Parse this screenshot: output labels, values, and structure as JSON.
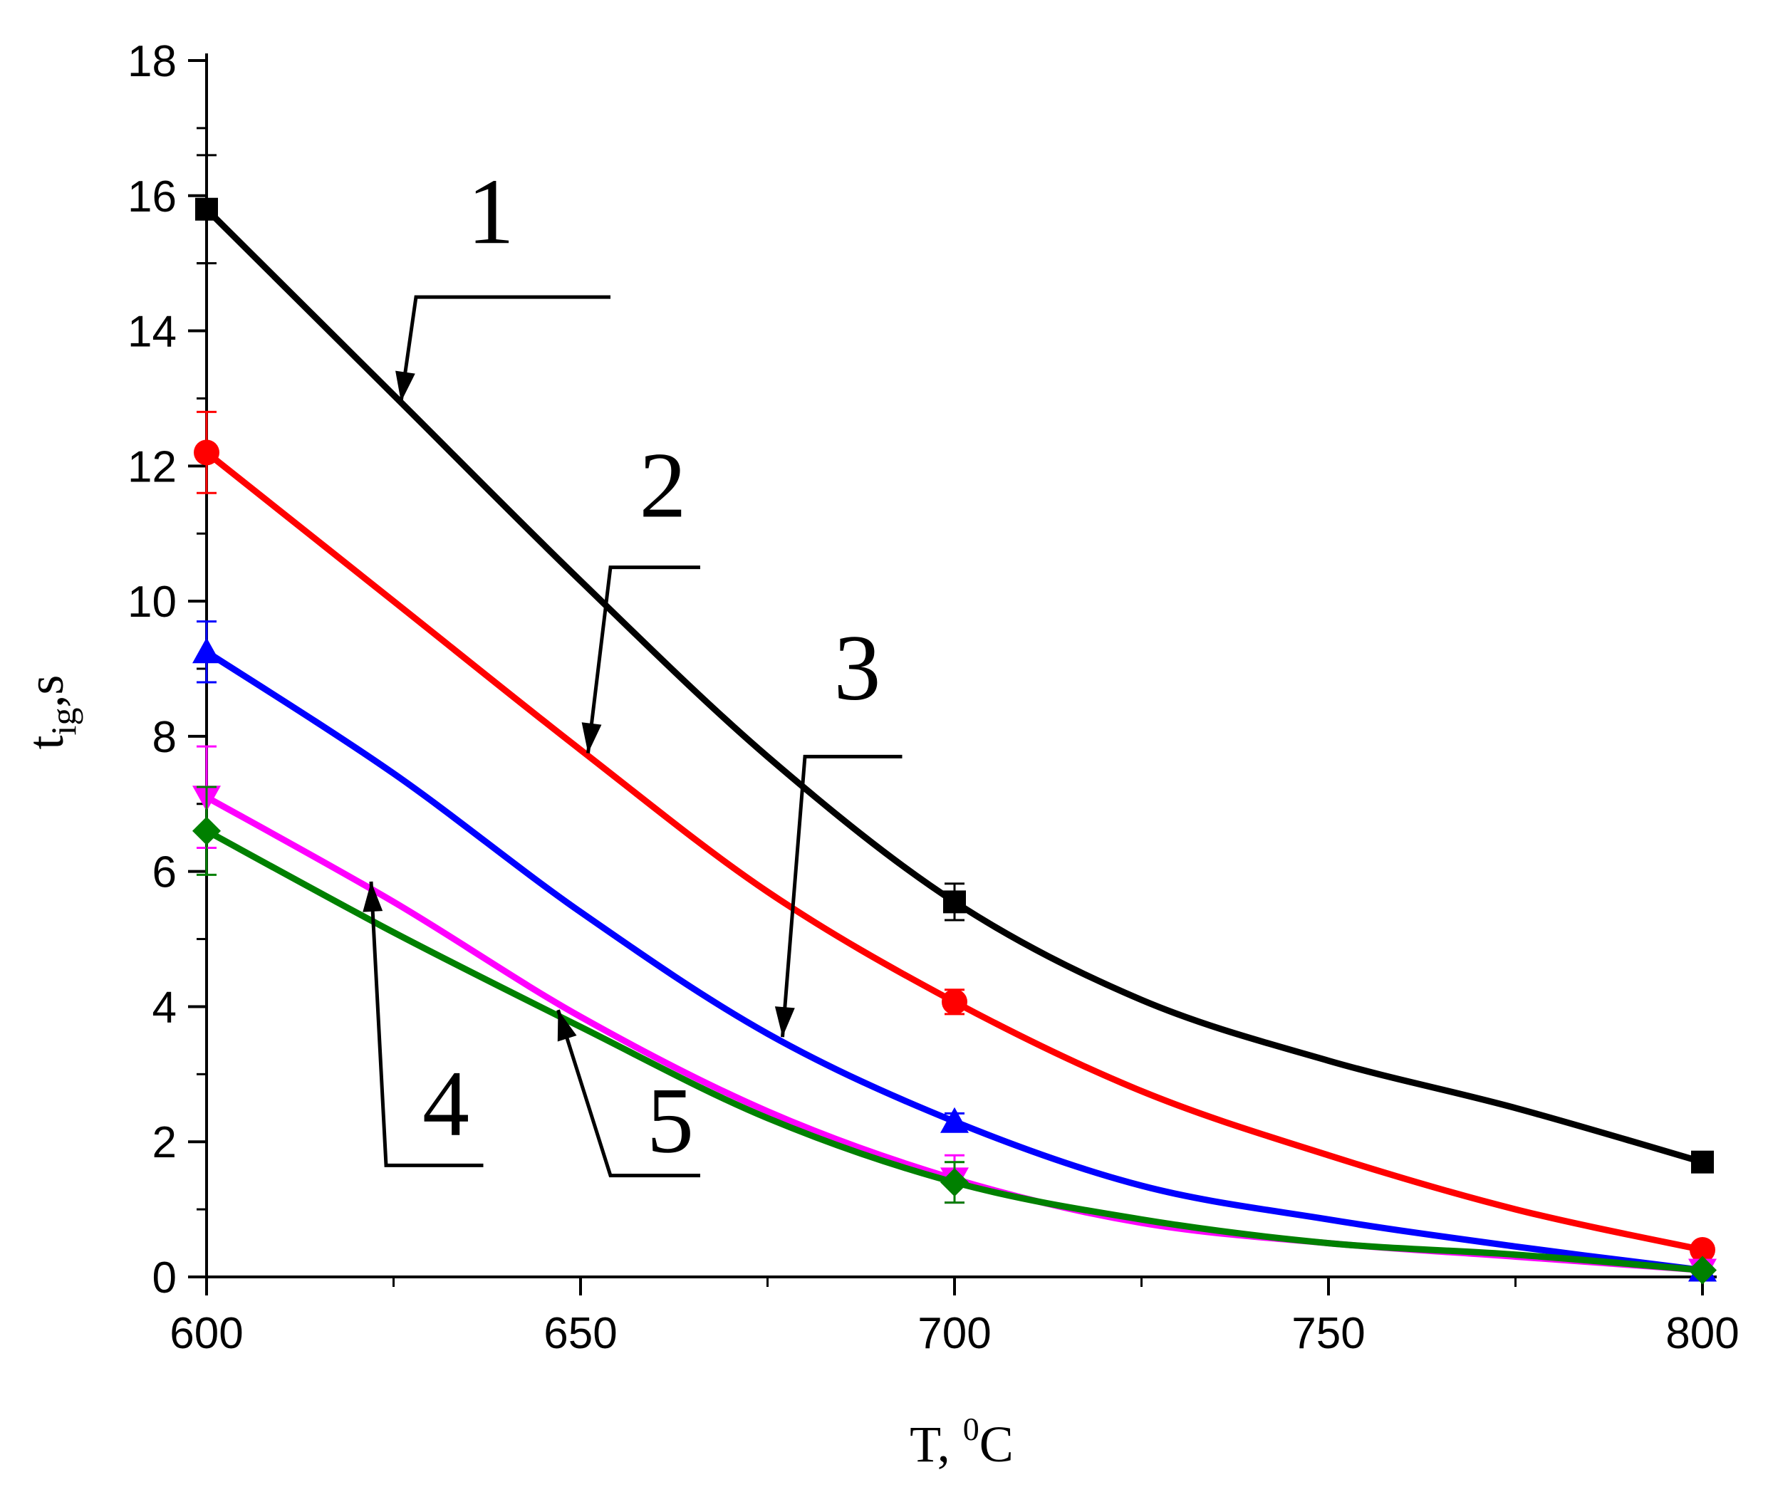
{
  "chart_data": {
    "type": "line",
    "title": "",
    "xlabel": {
      "main": "T, ",
      "sup": "0",
      "unit": "C"
    },
    "ylabel": {
      "main": "t",
      "sub": "ig",
      "unit": ",s"
    },
    "xlim": [
      600,
      800
    ],
    "ylim": [
      0,
      18
    ],
    "xticks": [
      600,
      650,
      700,
      750,
      800
    ],
    "xtick_labels": [
      "600",
      "650",
      "700",
      "750",
      "800"
    ],
    "yticks": [
      0,
      2,
      4,
      6,
      8,
      10,
      12,
      14,
      16,
      18
    ],
    "ytick_labels": [
      "0",
      "2",
      "4",
      "6",
      "8",
      "10",
      "12",
      "14",
      "16",
      "18"
    ],
    "x": [
      600,
      700,
      800
    ],
    "series": [
      {
        "name": "1",
        "color": "#000000",
        "marker": "square",
        "values": [
          15.8,
          5.55,
          1.7
        ],
        "errors": [
          0.8,
          0.27,
          0.08
        ],
        "curve": [
          [
            600,
            15.8
          ],
          [
            625,
            13.05
          ],
          [
            650,
            10.3
          ],
          [
            675,
            7.7
          ],
          [
            700,
            5.55
          ],
          [
            725,
            4.1
          ],
          [
            750,
            3.2
          ],
          [
            775,
            2.5
          ],
          [
            800,
            1.7
          ]
        ]
      },
      {
        "name": "2",
        "color": "#ff0000",
        "marker": "circle",
        "values": [
          12.2,
          4.07,
          0.4
        ],
        "errors": [
          0.6,
          0.18,
          0.05
        ],
        "curve": [
          [
            600,
            12.2
          ],
          [
            625,
            10.0
          ],
          [
            650,
            7.8
          ],
          [
            675,
            5.7
          ],
          [
            700,
            4.07
          ],
          [
            725,
            2.75
          ],
          [
            750,
            1.8
          ],
          [
            775,
            1.0
          ],
          [
            800,
            0.4
          ]
        ]
      },
      {
        "name": "3",
        "color": "#0000ff",
        "marker": "triangle-up",
        "values": [
          9.25,
          2.3,
          0.1
        ],
        "errors": [
          0.45,
          0.12,
          0.04
        ],
        "curve": [
          [
            600,
            9.25
          ],
          [
            625,
            7.45
          ],
          [
            650,
            5.4
          ],
          [
            675,
            3.6
          ],
          [
            700,
            2.3
          ],
          [
            725,
            1.35
          ],
          [
            750,
            0.85
          ],
          [
            775,
            0.45
          ],
          [
            800,
            0.1
          ]
        ]
      },
      {
        "name": "4",
        "color": "#ff00ff",
        "marker": "triangle-down",
        "values": [
          7.1,
          1.45,
          0.1
        ],
        "errors": [
          0.75,
          0.35,
          0.04
        ],
        "curve": [
          [
            600,
            7.1
          ],
          [
            625,
            5.55
          ],
          [
            650,
            3.85
          ],
          [
            675,
            2.45
          ],
          [
            700,
            1.45
          ],
          [
            725,
            0.8
          ],
          [
            750,
            0.5
          ],
          [
            775,
            0.3
          ],
          [
            800,
            0.1
          ]
        ]
      },
      {
        "name": "5",
        "color": "#008000",
        "marker": "diamond",
        "values": [
          6.6,
          1.4,
          0.1
        ],
        "errors": [
          0.65,
          0.3,
          0.04
        ],
        "curve": [
          [
            600,
            6.6
          ],
          [
            625,
            5.1
          ],
          [
            650,
            3.7
          ],
          [
            675,
            2.35
          ],
          [
            700,
            1.4
          ],
          [
            725,
            0.85
          ],
          [
            750,
            0.5
          ],
          [
            775,
            0.33
          ],
          [
            800,
            0.1
          ]
        ]
      }
    ],
    "callouts": [
      {
        "label": "1",
        "tip": [
          626,
          12.95
        ],
        "elbow": [
          628,
          14.5
        ],
        "end": [
          654,
          14.5
        ],
        "text_at": [
          638,
          15.3
        ]
      },
      {
        "label": "2",
        "tip": [
          651,
          7.75
        ],
        "elbow": [
          654,
          10.5
        ],
        "end": [
          666,
          10.5
        ],
        "text_at": [
          661,
          11.25
        ]
      },
      {
        "label": "3",
        "tip": [
          677,
          3.55
        ],
        "elbow": [
          680,
          7.7
        ],
        "end": [
          693,
          7.7
        ],
        "text_at": [
          687,
          8.55
        ]
      },
      {
        "label": "4",
        "tip": [
          622,
          5.85
        ],
        "elbow": [
          624,
          1.65
        ],
        "end": [
          637,
          1.65
        ],
        "text_at": [
          632,
          2.1
        ]
      },
      {
        "label": "5",
        "tip": [
          647,
          3.95
        ],
        "elbow": [
          654,
          1.5
        ],
        "end": [
          666,
          1.5
        ],
        "text_at": [
          662,
          1.85
        ]
      }
    ]
  }
}
